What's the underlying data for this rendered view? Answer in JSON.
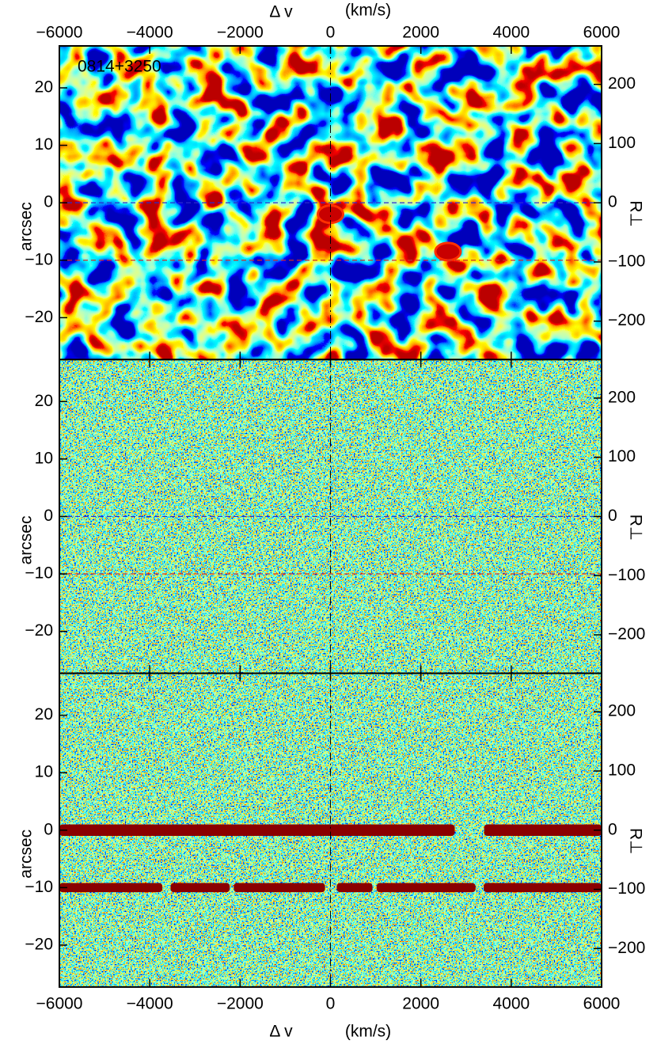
{
  "chart_data": [
    {
      "type": "heatmap",
      "texture": "smooth",
      "xlim": [
        -6000,
        6000
      ],
      "ylim": [
        -27.3,
        27.3
      ],
      "y2lim": [
        -265,
        265
      ],
      "xticks": [
        {
          "value": -6000,
          "label": "−6000"
        },
        {
          "value": -4000,
          "label": "−4000"
        },
        {
          "value": -2000,
          "label": "−2000"
        },
        0,
        2000,
        4000,
        6000
      ],
      "yticks": [
        {
          "value": -20,
          "label": "−20"
        },
        {
          "value": -10,
          "label": "−10"
        },
        0,
        10,
        20
      ],
      "y2ticks": [
        {
          "value": -200,
          "label": "−200"
        },
        {
          "value": -100,
          "label": "−100"
        },
        0,
        100,
        200
      ],
      "xtick_labels": "top",
      "xlabel": "Δ v",
      "xunit": "(km/s)",
      "ylabel": "arcsec",
      "y2label": "R⊥",
      "annotation": "0814+3250",
      "vline": 0,
      "hlines": [
        {
          "y": 0,
          "color": "#2a2ad0"
        },
        {
          "y": -10,
          "color": "#d02a2a"
        }
      ],
      "blobs": [
        {
          "x": 0,
          "y": -2
        },
        {
          "x": 2600,
          "y": -8.5
        }
      ]
    },
    {
      "type": "heatmap",
      "texture": "noise",
      "xlim": [
        -6000,
        6000
      ],
      "ylim": [
        -27.3,
        27.3
      ],
      "y2lim": [
        -265,
        265
      ],
      "xticks": [
        {
          "value": -6000,
          "label": "−6000"
        },
        {
          "value": -4000,
          "label": "−4000"
        },
        {
          "value": -2000,
          "label": "−2000"
        },
        0,
        2000,
        4000,
        6000
      ],
      "yticks": [
        {
          "value": -20,
          "label": "−20"
        },
        {
          "value": -10,
          "label": "−10"
        },
        0,
        10,
        20
      ],
      "y2ticks": [
        {
          "value": -200,
          "label": "−200"
        },
        {
          "value": -100,
          "label": "−100"
        },
        0,
        100,
        200
      ],
      "xtick_labels": "none",
      "ylabel": "arcsec",
      "y2label": "R⊥",
      "vline": 0,
      "hlines": [
        {
          "y": 0,
          "color": "#2a2ad0"
        },
        {
          "y": -10,
          "color": "#d02a2a"
        }
      ]
    },
    {
      "type": "heatmap",
      "texture": "noise",
      "xlim": [
        -6000,
        6000
      ],
      "ylim": [
        -27.3,
        27.3
      ],
      "y2lim": [
        -265,
        265
      ],
      "xticks": [
        {
          "value": -6000,
          "label": "−6000"
        },
        {
          "value": -4000,
          "label": "−4000"
        },
        {
          "value": -2000,
          "label": "−2000"
        },
        0,
        2000,
        4000,
        6000
      ],
      "yticks": [
        {
          "value": -20,
          "label": "−20"
        },
        {
          "value": -10,
          "label": "−10"
        },
        0,
        10,
        20
      ],
      "y2ticks": [
        {
          "value": -200,
          "label": "−200"
        },
        {
          "value": -100,
          "label": "−100"
        },
        0,
        100,
        200
      ],
      "xtick_labels": "bottom",
      "xlabel": "Δ v",
      "xunit": "(km/s)",
      "ylabel": "arcsec",
      "y2label": "R⊥",
      "vline": 0,
      "bands": [
        {
          "y": 0,
          "height": 2,
          "x0": -6000,
          "x1": 2750
        },
        {
          "y": 0,
          "height": 2,
          "x0": 3400,
          "x1": 6000
        },
        {
          "y": -10,
          "height": 1.6,
          "x0": -6000,
          "x1": -3720
        },
        {
          "y": -10,
          "height": 1.6,
          "x0": -3540,
          "x1": -2230
        },
        {
          "y": -10,
          "height": 1.6,
          "x0": -2140,
          "x1": -120
        },
        {
          "y": -10,
          "height": 1.6,
          "x0": 140,
          "x1": 930
        },
        {
          "y": -10,
          "height": 1.6,
          "x0": 1020,
          "x1": 3210
        },
        {
          "y": -10,
          "height": 1.6,
          "x0": 3390,
          "x1": 6000
        }
      ]
    }
  ]
}
